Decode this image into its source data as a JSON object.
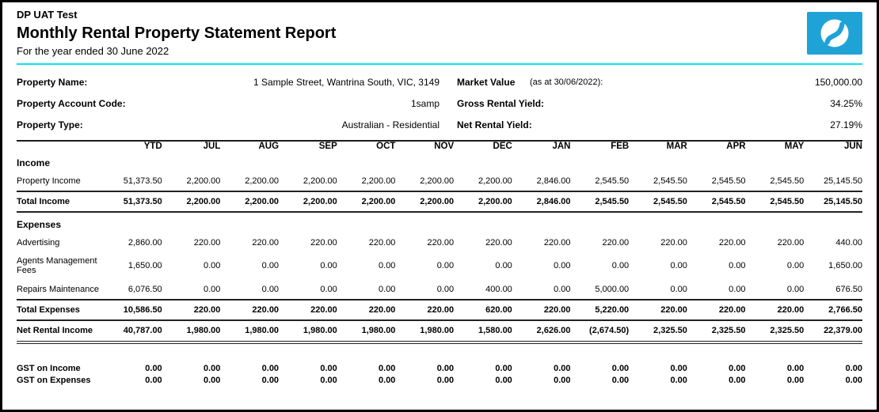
{
  "header": {
    "company": "DP UAT Test",
    "title": "Monthly Rental Property Statement Report",
    "subtitle": "For the year ended 30 June 2022",
    "accent_color": "#00e6f2",
    "logo": {
      "icon": "swirl-s-logo-icon",
      "background": "#1fa3d6"
    }
  },
  "property_info": {
    "left": [
      {
        "label": "Property Name:",
        "value": "1 Sample Street, Wantrina South, VIC, 3149"
      },
      {
        "label": "Property Account Code:",
        "value": "1samp"
      },
      {
        "label": "Property Type:",
        "value": "Australian - Residential"
      }
    ],
    "right": [
      {
        "label": "Market Value",
        "note": "(as at 30/06/2022):",
        "value": "150,000.00"
      },
      {
        "label": "Gross Rental Yield:",
        "note": "",
        "value": "34.25%"
      },
      {
        "label": "Net Rental Yield:",
        "note": "",
        "value": "27.19%"
      }
    ]
  },
  "table": {
    "columns": [
      "YTD",
      "JUL",
      "AUG",
      "SEP",
      "OCT",
      "NOV",
      "DEC",
      "JAN",
      "FEB",
      "MAR",
      "APR",
      "MAY",
      "JUN"
    ],
    "rows": [
      {
        "type": "section",
        "label": "Income"
      },
      {
        "type": "data",
        "label": "Property Income",
        "values": [
          "51,373.50",
          "2,200.00",
          "2,200.00",
          "2,200.00",
          "2,200.00",
          "2,200.00",
          "2,200.00",
          "2,846.00",
          "2,545.50",
          "2,545.50",
          "2,545.50",
          "2,545.50",
          "25,145.50"
        ]
      },
      {
        "type": "total",
        "label": "Total Income",
        "values": [
          "51,373.50",
          "2,200.00",
          "2,200.00",
          "2,200.00",
          "2,200.00",
          "2,200.00",
          "2,200.00",
          "2,846.00",
          "2,545.50",
          "2,545.50",
          "2,545.50",
          "2,545.50",
          "25,145.50"
        ]
      },
      {
        "type": "section",
        "label": "Expenses"
      },
      {
        "type": "data",
        "label": "Advertising",
        "values": [
          "2,860.00",
          "220.00",
          "220.00",
          "220.00",
          "220.00",
          "220.00",
          "220.00",
          "220.00",
          "220.00",
          "220.00",
          "220.00",
          "220.00",
          "440.00"
        ]
      },
      {
        "type": "data",
        "label": "Agents Management Fees",
        "values": [
          "1,650.00",
          "0.00",
          "0.00",
          "0.00",
          "0.00",
          "0.00",
          "0.00",
          "0.00",
          "0.00",
          "0.00",
          "0.00",
          "0.00",
          "1,650.00"
        ]
      },
      {
        "type": "data",
        "label": "Repairs Maintenance",
        "values": [
          "6,076.50",
          "0.00",
          "0.00",
          "0.00",
          "0.00",
          "0.00",
          "400.00",
          "0.00",
          "5,000.00",
          "0.00",
          "0.00",
          "0.00",
          "676.50"
        ]
      },
      {
        "type": "total",
        "label": "Total Expenses",
        "values": [
          "10,586.50",
          "220.00",
          "220.00",
          "220.00",
          "220.00",
          "220.00",
          "620.00",
          "220.00",
          "5,220.00",
          "220.00",
          "220.00",
          "220.00",
          "2,766.50"
        ]
      },
      {
        "type": "net",
        "label": "Net Rental Income",
        "values": [
          "40,787.00",
          "1,980.00",
          "1,980.00",
          "1,980.00",
          "1,980.00",
          "1,980.00",
          "1,580.00",
          "2,626.00",
          "(2,674.50)",
          "2,325.50",
          "2,325.50",
          "2,325.50",
          "22,379.00"
        ]
      },
      {
        "type": "gap",
        "label": ""
      },
      {
        "type": "gst",
        "label": "GST on Income",
        "values": [
          "0.00",
          "0.00",
          "0.00",
          "0.00",
          "0.00",
          "0.00",
          "0.00",
          "0.00",
          "0.00",
          "0.00",
          "0.00",
          "0.00",
          "0.00"
        ]
      },
      {
        "type": "gst",
        "label": "GST on Expenses",
        "values": [
          "0.00",
          "0.00",
          "0.00",
          "0.00",
          "0.00",
          "0.00",
          "0.00",
          "0.00",
          "0.00",
          "0.00",
          "0.00",
          "0.00",
          "0.00"
        ]
      }
    ]
  }
}
